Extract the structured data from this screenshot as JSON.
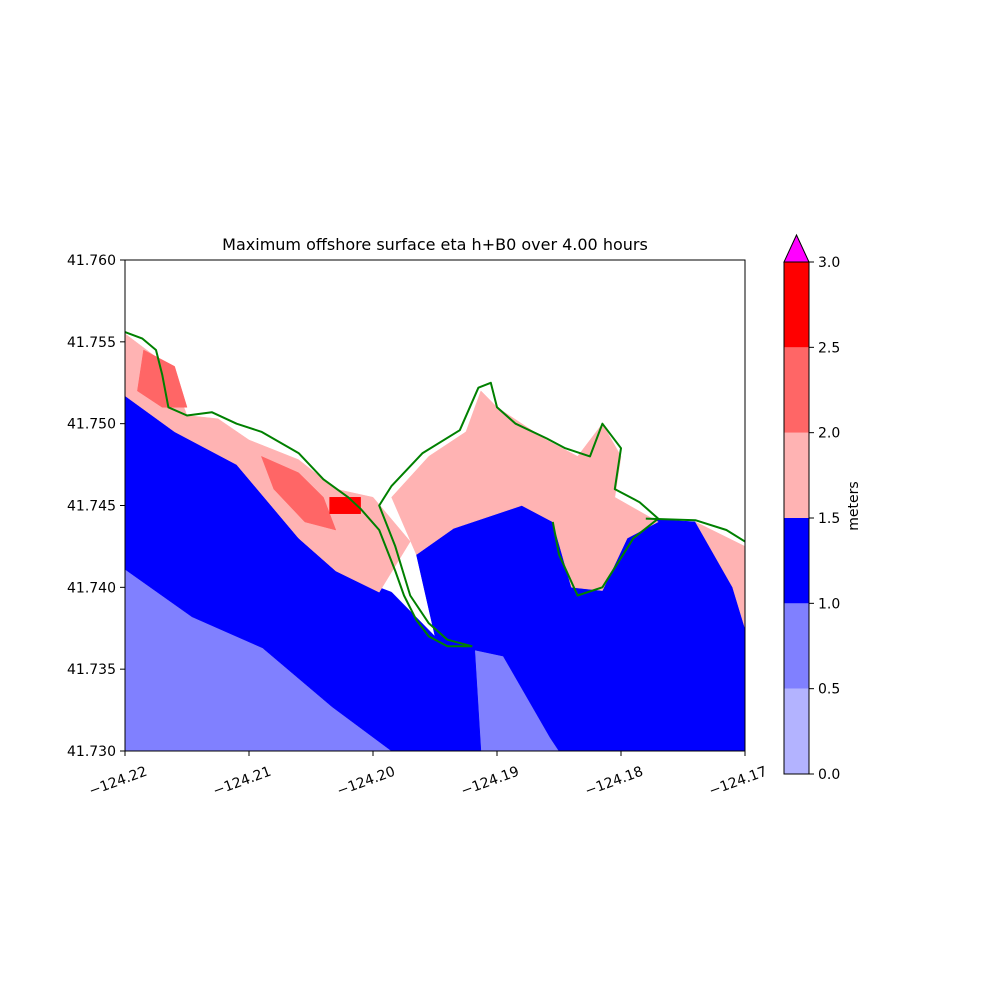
{
  "chart_data": {
    "type": "heatmap",
    "title": "Maximum offshore surface eta h+B0 over 4.00 hours",
    "xlabel": "",
    "ylabel": "",
    "xlim": [
      -124.22,
      -124.17
    ],
    "ylim": [
      41.73,
      41.76
    ],
    "x_ticks": [
      "−124.22",
      "−124.21",
      "−124.20",
      "−124.19",
      "−124.18",
      "−124.17"
    ],
    "x_tick_values": [
      -124.22,
      -124.21,
      -124.2,
      -124.19,
      -124.18,
      -124.17
    ],
    "y_ticks": [
      "41.730",
      "41.735",
      "41.740",
      "41.745",
      "41.750",
      "41.755",
      "41.760"
    ],
    "y_tick_values": [
      41.73,
      41.735,
      41.74,
      41.745,
      41.75,
      41.755,
      41.76
    ],
    "colorbar": {
      "label": "meters",
      "levels": [
        0.0,
        0.5,
        1.0,
        1.5,
        2.0,
        2.5,
        3.0
      ],
      "tick_labels": [
        "0.0",
        "0.5",
        "1.0",
        "1.5",
        "2.0",
        "2.5",
        "3.0"
      ],
      "colors": [
        "#b3b3ff",
        "#8080ff",
        "#0000ff",
        "#ffb3b3",
        "#ff6666",
        "#ff0000"
      ],
      "extend_max_color": "#ff00ff"
    },
    "regions": [
      {
        "level": "0.5-1.0",
        "color": "#8080ff",
        "polygon": [
          [
            -124.22,
            41.7411
          ],
          [
            -124.2146,
            41.7382
          ],
          [
            -124.2089,
            41.7363
          ],
          [
            -124.2033,
            41.7327
          ],
          [
            -124.1985,
            41.73
          ],
          [
            -124.22,
            41.73
          ]
        ]
      },
      {
        "level": "0.5-1.0",
        "color": "#8080ff",
        "polygon": [
          [
            -124.192,
            41.7362
          ],
          [
            -124.1895,
            41.7358
          ],
          [
            -124.1857,
            41.7308
          ],
          [
            -124.185,
            41.73
          ],
          [
            -124.1913,
            41.73
          ],
          [
            -124.1918,
            41.732
          ]
        ]
      },
      {
        "level": "1.0-1.5",
        "color": "#0000ff",
        "polygon": [
          [
            -124.22,
            41.7517
          ],
          [
            -124.216,
            41.7495
          ],
          [
            -124.211,
            41.7475
          ],
          [
            -124.206,
            41.743
          ],
          [
            -124.203,
            41.741
          ],
          [
            -124.1985,
            41.7397
          ],
          [
            -124.195,
            41.737
          ],
          [
            -124.1918,
            41.7362
          ],
          [
            -124.1913,
            41.73
          ],
          [
            -124.1985,
            41.73
          ],
          [
            -124.2033,
            41.7327
          ],
          [
            -124.2089,
            41.7363
          ],
          [
            -124.2146,
            41.7382
          ],
          [
            -124.22,
            41.7411
          ]
        ]
      },
      {
        "level": "1.0-1.5",
        "color": "#0000ff",
        "polygon": [
          [
            -124.1965,
            41.742
          ],
          [
            -124.1935,
            41.7436
          ],
          [
            -124.188,
            41.745
          ],
          [
            -124.1855,
            41.744
          ],
          [
            -124.184,
            41.74
          ],
          [
            -124.1815,
            41.7398
          ],
          [
            -124.1795,
            41.743
          ],
          [
            -124.178,
            41.7442
          ],
          [
            -124.174,
            41.744
          ],
          [
            -124.171,
            41.74
          ],
          [
            -124.17,
            41.7375
          ],
          [
            -124.17,
            41.73
          ],
          [
            -124.185,
            41.73
          ],
          [
            -124.1857,
            41.7308
          ],
          [
            -124.1895,
            41.7358
          ],
          [
            -124.192,
            41.7362
          ],
          [
            -124.195,
            41.737
          ]
        ]
      },
      {
        "level": "1.5-2.0",
        "color": "#ffb3b3",
        "polygon": [
          [
            -124.22,
            41.7555
          ],
          [
            -124.2165,
            41.7535
          ],
          [
            -124.215,
            41.7505
          ],
          [
            -124.2125,
            41.7503
          ],
          [
            -124.21,
            41.749
          ],
          [
            -124.206,
            41.7478
          ],
          [
            -124.203,
            41.746
          ],
          [
            -124.2,
            41.7455
          ],
          [
            -124.197,
            41.7428
          ],
          [
            -124.1995,
            41.7397
          ],
          [
            -124.203,
            41.741
          ],
          [
            -124.206,
            41.743
          ],
          [
            -124.211,
            41.7475
          ],
          [
            -124.216,
            41.7495
          ],
          [
            -124.22,
            41.7517
          ]
        ]
      },
      {
        "level": "1.5-2.0",
        "color": "#ffb3b3",
        "polygon": [
          [
            -124.1985,
            41.7455
          ],
          [
            -124.1955,
            41.748
          ],
          [
            -124.1925,
            41.7495
          ],
          [
            -124.1913,
            41.752
          ],
          [
            -124.19,
            41.751
          ],
          [
            -124.188,
            41.75
          ],
          [
            -124.186,
            41.749
          ],
          [
            -124.1835,
            41.748
          ],
          [
            -124.1815,
            41.75
          ],
          [
            -124.18,
            41.748
          ],
          [
            -124.1805,
            41.7455
          ],
          [
            -124.177,
            41.744
          ],
          [
            -124.1795,
            41.743
          ],
          [
            -124.1815,
            41.7398
          ],
          [
            -124.184,
            41.74
          ],
          [
            -124.1855,
            41.744
          ],
          [
            -124.188,
            41.745
          ],
          [
            -124.1935,
            41.7436
          ],
          [
            -124.1965,
            41.742
          ]
        ]
      },
      {
        "level": "1.5-2.0",
        "color": "#ffb3b3",
        "polygon": [
          [
            -124.174,
            41.744
          ],
          [
            -124.17,
            41.7425
          ],
          [
            -124.17,
            41.7375
          ],
          [
            -124.171,
            41.74
          ]
        ]
      },
      {
        "level": "2.0-2.5",
        "color": "#ff6666",
        "polygon": [
          [
            -124.2185,
            41.7545
          ],
          [
            -124.216,
            41.7535
          ],
          [
            -124.215,
            41.751
          ],
          [
            -124.217,
            41.751
          ],
          [
            -124.219,
            41.752
          ]
        ]
      },
      {
        "level": "2.0-2.5",
        "color": "#ff6666",
        "polygon": [
          [
            -124.209,
            41.748
          ],
          [
            -124.206,
            41.747
          ],
          [
            -124.204,
            41.7455
          ],
          [
            -124.203,
            41.7435
          ],
          [
            -124.2055,
            41.744
          ],
          [
            -124.208,
            41.746
          ]
        ]
      },
      {
        "level": "2.5-3.0",
        "color": "#ff0000",
        "polygon": [
          [
            -124.2035,
            41.7455
          ],
          [
            -124.201,
            41.7455
          ],
          [
            -124.201,
            41.7445
          ],
          [
            -124.2035,
            41.7445
          ]
        ]
      }
    ],
    "coastline_color": "#008000",
    "coastline": [
      [
        [
          -124.22,
          41.7556
        ],
        [
          -124.2186,
          41.7552
        ],
        [
          -124.2175,
          41.7545
        ],
        [
          -124.217,
          41.753
        ],
        [
          -124.2165,
          41.751
        ],
        [
          -124.215,
          41.7505
        ],
        [
          -124.213,
          41.7507
        ],
        [
          -124.211,
          41.75
        ],
        [
          -124.209,
          41.7495
        ],
        [
          -124.206,
          41.7482
        ],
        [
          -124.204,
          41.7466
        ],
        [
          -124.202,
          41.7455
        ],
        [
          -124.201,
          41.7448
        ],
        [
          -124.1995,
          41.7435
        ],
        [
          -124.1982,
          41.741
        ],
        [
          -124.1975,
          41.7395
        ],
        [
          -124.1965,
          41.738
        ],
        [
          -124.1955,
          41.737
        ],
        [
          -124.194,
          41.7364
        ],
        [
          -124.192,
          41.7364
        ]
      ],
      [
        [
          -124.192,
          41.7364
        ],
        [
          -124.194,
          41.7368
        ],
        [
          -124.1955,
          41.7378
        ],
        [
          -124.197,
          41.7395
        ],
        [
          -124.1982,
          41.7425
        ],
        [
          -124.1995,
          41.745
        ],
        [
          -124.1985,
          41.7462
        ],
        [
          -124.196,
          41.7482
        ],
        [
          -124.193,
          41.7496
        ],
        [
          -124.1915,
          41.7522
        ],
        [
          -124.1905,
          41.7525
        ],
        [
          -124.19,
          41.751
        ],
        [
          -124.1885,
          41.75
        ],
        [
          -124.186,
          41.7491
        ],
        [
          -124.1845,
          41.7485
        ],
        [
          -124.1825,
          41.748
        ],
        [
          -124.1815,
          41.75
        ],
        [
          -124.18,
          41.7485
        ],
        [
          -124.1805,
          41.746
        ],
        [
          -124.1785,
          41.7452
        ],
        [
          -124.177,
          41.7442
        ],
        [
          -124.179,
          41.743
        ],
        [
          -124.1815,
          41.74
        ],
        [
          -124.1835,
          41.7395
        ],
        [
          -124.185,
          41.742
        ],
        [
          -124.1855,
          41.744
        ]
      ],
      [
        [
          -124.178,
          41.7442
        ],
        [
          -124.174,
          41.7441
        ],
        [
          -124.1715,
          41.7435
        ],
        [
          -124.17,
          41.7428
        ]
      ]
    ]
  }
}
